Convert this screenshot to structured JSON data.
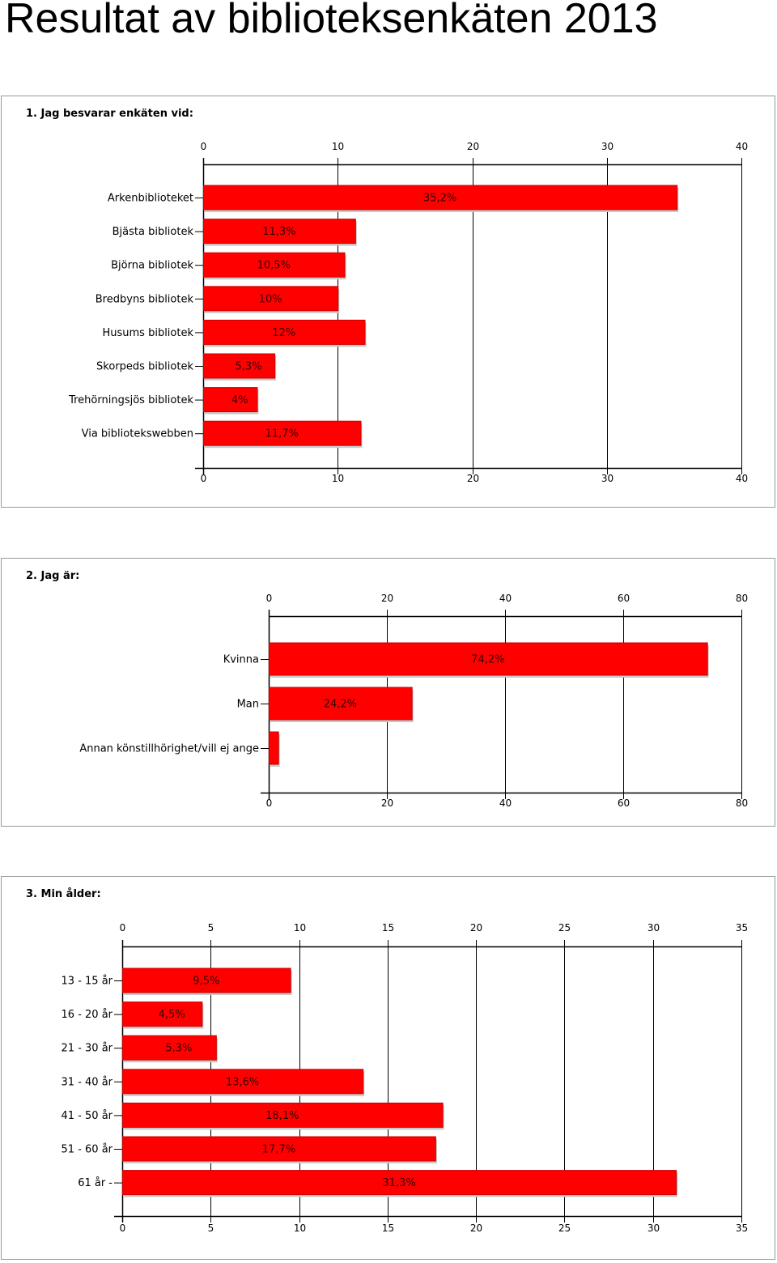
{
  "page": {
    "title": "Resultat av biblioteksenkäten 2013"
  },
  "colors": {
    "bar": "#ff0000",
    "bar_border": "#cc0000",
    "bar_shadow": "#c8c8c8",
    "grid": "#000000",
    "label": "#000000"
  },
  "chart_data": [
    {
      "type": "bar",
      "orientation": "horizontal",
      "title": "1. Jag besvarar enkäten vid:",
      "categories": [
        "Arkenbiblioteket",
        "Bjästa bibliotek",
        "Björna bibliotek",
        "Bredbyns bibliotek",
        "Husums bibliotek",
        "Skorpeds bibliotek",
        "Trehörningsjös bibliotek",
        "Via bibliotekswebben"
      ],
      "values": [
        35.2,
        11.3,
        10.5,
        10,
        12,
        5.3,
        4,
        11.7
      ],
      "value_labels": [
        "35,2%",
        "11,3%",
        "10,5%",
        "10%",
        "12%",
        "5,3%",
        "4%",
        "11,7%"
      ],
      "xlim": [
        0,
        40
      ],
      "ticks": [
        0,
        10,
        20,
        30,
        40
      ],
      "grid": true
    },
    {
      "type": "bar",
      "orientation": "horizontal",
      "title": "2. Jag är:",
      "categories": [
        "Kvinna",
        "Man",
        "Annan könstillhörighet/vill ej ange"
      ],
      "values": [
        74.2,
        24.2,
        1.6
      ],
      "value_labels": [
        "74,2%",
        "24,2%",
        ""
      ],
      "xlim": [
        0,
        80
      ],
      "ticks": [
        0,
        20,
        40,
        60,
        80
      ],
      "grid": true
    },
    {
      "type": "bar",
      "orientation": "horizontal",
      "title": "3. Min ålder:",
      "categories": [
        "13 - 15 år",
        "16 - 20 år",
        "21 - 30 år",
        "31 - 40 år",
        "41 - 50 år",
        "51 - 60 år",
        "61 år -"
      ],
      "values": [
        9.5,
        4.5,
        5.3,
        13.6,
        18.1,
        17.7,
        31.3
      ],
      "value_labels": [
        "9,5%",
        "4,5%",
        "5,3%",
        "13,6%",
        "18,1%",
        "17,7%",
        "31,3%"
      ],
      "xlim": [
        0,
        35
      ],
      "ticks": [
        0,
        5,
        10,
        15,
        20,
        25,
        30,
        35
      ],
      "grid": true
    }
  ]
}
